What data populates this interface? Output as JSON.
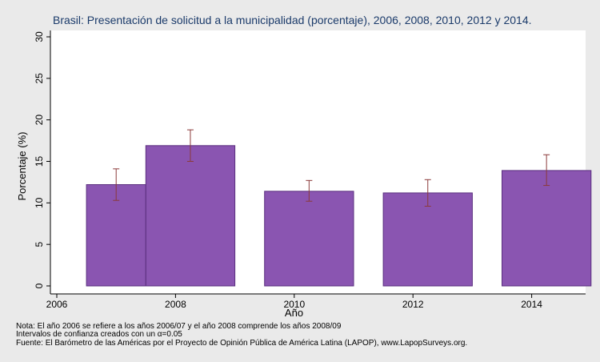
{
  "chart_data": {
    "type": "bar",
    "title": "Brasil: Presentación de solicitud a la municipalidad (porcentaje), 2006, 2008, 2010, 2012 y 2014.",
    "xlabel": "Año",
    "ylabel": "Porcentaje (%)",
    "xlim": [
      2006,
      2015.4
    ],
    "ylim": [
      0,
      30
    ],
    "x_ticks": [
      "2006",
      "2008",
      "2010",
      "2012",
      "2014"
    ],
    "y_ticks": [
      "0",
      "5",
      "10",
      "15",
      "20",
      "25",
      "30"
    ],
    "bars": [
      {
        "year_start": 2006.5,
        "year_end": 2007.5,
        "value": 12.2,
        "ci_low": 10.3,
        "ci_high": 14.1
      },
      {
        "year_start": 2007.5,
        "year_end": 2009.0,
        "value": 16.9,
        "ci_low": 15.0,
        "ci_high": 18.8
      },
      {
        "year_start": 2009.5,
        "year_end": 2011.0,
        "value": 11.4,
        "ci_low": 10.2,
        "ci_high": 12.7
      },
      {
        "year_start": 2011.5,
        "year_end": 2013.0,
        "value": 11.2,
        "ci_low": 9.6,
        "ci_high": 12.8
      },
      {
        "year_start": 2013.5,
        "year_end": 2015.0,
        "value": 13.9,
        "ci_low": 12.1,
        "ci_high": 15.8
      }
    ],
    "bar_color": "#8a55b1",
    "bar_edge_color": "#5a2e7e",
    "errorbar_color": "#8b3a3a",
    "notes": [
      "Nota: El año 2006 se refiere a los años 2006/07 y el año 2008 comprende los años 2008/09",
      "Intervalos de confianza creados con un α=0.05",
      "Fuente: El Barómetro de las Américas por el Proyecto de Opinión Pública de América Latina (LAPOP), www.LapopSurveys.org."
    ]
  }
}
